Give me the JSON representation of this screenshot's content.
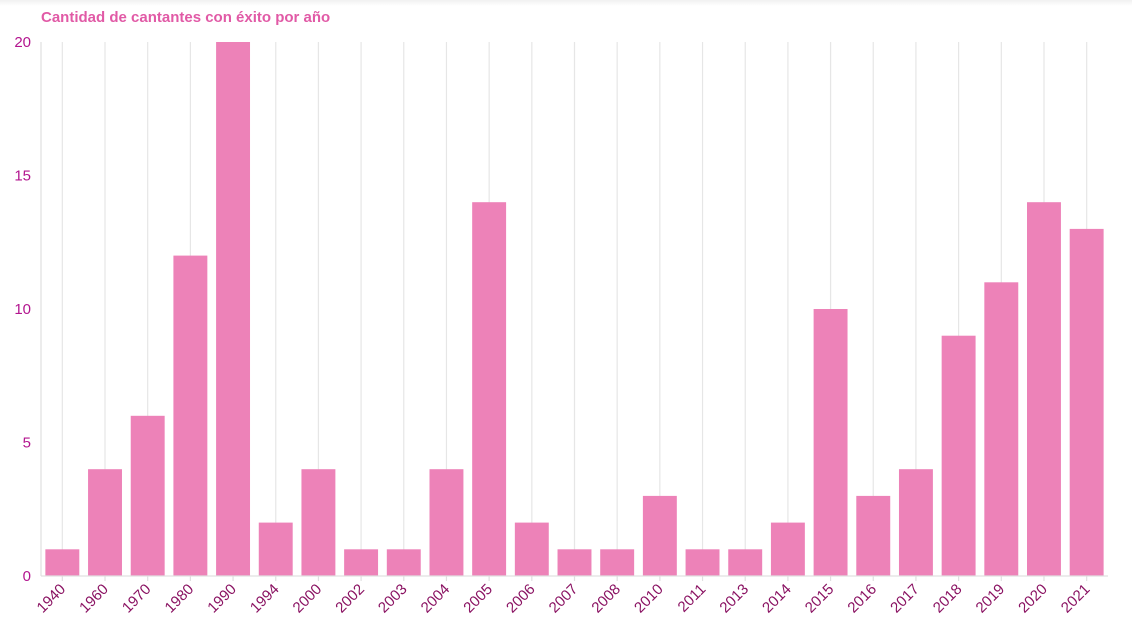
{
  "chart_data": {
    "type": "bar",
    "title": "Cantidad de cantantes con éxito por año",
    "xlabel": "",
    "ylabel": "",
    "categories": [
      "1940",
      "1960",
      "1970",
      "1980",
      "1990",
      "1994",
      "2000",
      "2002",
      "2003",
      "2004",
      "2005",
      "2006",
      "2007",
      "2008",
      "2010",
      "2011",
      "2013",
      "2014",
      "2015",
      "2016",
      "2017",
      "2018",
      "2019",
      "2020",
      "2021"
    ],
    "values": [
      1,
      4,
      6,
      12,
      20,
      2,
      4,
      1,
      1,
      4,
      14,
      2,
      1,
      1,
      3,
      1,
      1,
      2,
      10,
      3,
      4,
      9,
      11,
      14,
      13
    ],
    "ylim": [
      0,
      20
    ],
    "yticks": [
      0,
      5,
      10,
      15,
      20
    ],
    "grid": "vertical",
    "legend": "none",
    "colors": {
      "bar": "#ed82b8",
      "title": "#e15aa6",
      "y_tick_label": "#b3158f",
      "x_tick_label": "#8a1262",
      "grid": "#e6e6e6"
    }
  }
}
